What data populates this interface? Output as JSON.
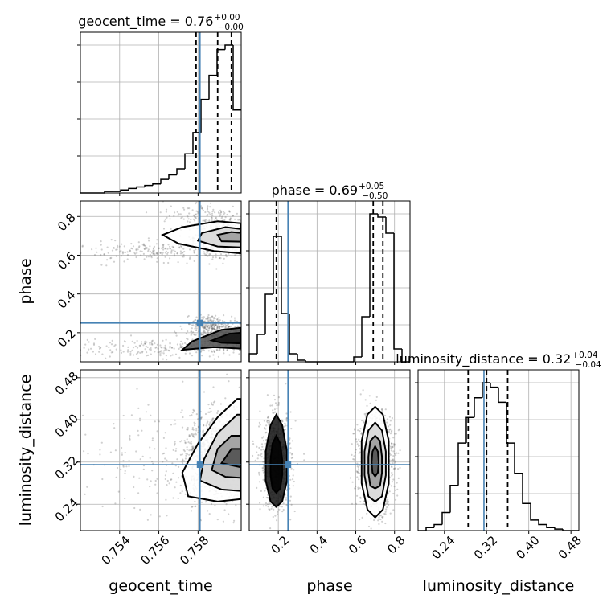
{
  "chart_data": {
    "type": "corner",
    "colors": {
      "truth": "#4682b4",
      "hist": "#000000",
      "points": "#555555",
      "grid": "#b0b0b0"
    },
    "parameters": [
      {
        "name": "geocent_time",
        "axis_label": "geocent_time",
        "range": [
          0.752,
          0.7602
        ],
        "ticks": [
          0.754,
          0.756,
          0.758
        ],
        "tick_labels": [
          "0.754",
          "0.756",
          "0.758"
        ],
        "truth": 0.7581,
        "quantiles": [
          0.7579,
          0.759,
          0.7597
        ],
        "title": {
          "main": "geocent_time = 0.76",
          "plus": "+0.00",
          "minus": "−0.00"
        },
        "hist": {
          "edges": [
            0.752,
            0.75241,
            0.75282,
            0.75323,
            0.75364,
            0.75405,
            0.75446,
            0.75487,
            0.75528,
            0.75569,
            0.7561,
            0.75651,
            0.75692,
            0.75733,
            0.75774,
            0.75815,
            0.75856,
            0.75897,
            0.75938,
            0.75979,
            0.7602
          ],
          "counts": [
            0,
            0,
            0,
            1,
            1,
            2,
            3,
            4,
            5,
            6,
            9,
            12,
            16,
            26,
            40,
            62,
            78,
            95,
            98,
            55
          ]
        }
      },
      {
        "name": "phase",
        "axis_label": "phase",
        "range": [
          0.05,
          0.88
        ],
        "ticks": [
          0.2,
          0.4,
          0.6,
          0.8
        ],
        "tick_labels": [
          "0.2",
          "0.4",
          "0.6",
          "0.8"
        ],
        "truth": 0.25,
        "quantiles": [
          0.19,
          0.69,
          0.74
        ],
        "title": {
          "main": "phase = 0.69",
          "plus": "+0.05",
          "minus": "−0.50"
        },
        "hist": {
          "edges": [
            0.05,
            0.0915,
            0.133,
            0.1745,
            0.216,
            0.2575,
            0.299,
            0.3405,
            0.382,
            0.4235,
            0.465,
            0.5065,
            0.548,
            0.5895,
            0.631,
            0.6725,
            0.714,
            0.7555,
            0.797,
            0.8385,
            0.88
          ],
          "counts": [
            5,
            17,
            42,
            78,
            30,
            5,
            1,
            0,
            0,
            0,
            0,
            0,
            0,
            3,
            28,
            92,
            90,
            80,
            8,
            0
          ]
        }
      },
      {
        "name": "luminosity_distance",
        "axis_label": "luminosity_distance",
        "range": [
          0.19,
          0.495
        ],
        "ticks": [
          0.24,
          0.32,
          0.4,
          0.48
        ],
        "tick_labels": [
          "0.24",
          "0.32",
          "0.40",
          "0.48"
        ],
        "truth": 0.315,
        "quantiles": [
          0.285,
          0.32,
          0.36
        ],
        "title": {
          "main": "luminosity_distance = 0.32",
          "plus": "+0.04",
          "minus": "−0.04"
        },
        "hist": {
          "edges": [
            0.19,
            0.20525,
            0.2205,
            0.23575,
            0.251,
            0.26625,
            0.2815,
            0.29675,
            0.312,
            0.32725,
            0.3425,
            0.35775,
            0.373,
            0.38825,
            0.4035,
            0.41875,
            0.434,
            0.44925,
            0.4645,
            0.47975,
            0.495
          ],
          "counts": [
            0,
            2,
            4,
            12,
            30,
            58,
            75,
            88,
            98,
            95,
            85,
            58,
            38,
            18,
            7,
            4,
            2,
            1,
            0,
            0
          ]
        }
      }
    ],
    "blobs_2d": {
      "phase_vs_geocent_time": [
        {
          "x": 0.7594,
          "y": 0.69,
          "sx": 0.0008,
          "sy": 0.04,
          "n": 600
        },
        {
          "x": 0.7592,
          "y": 0.19,
          "sx": 0.0008,
          "sy": 0.04,
          "n": 450
        },
        {
          "x": 0.7565,
          "y": 0.62,
          "sx": 0.0025,
          "sy": 0.025,
          "n": 250
        },
        {
          "x": 0.756,
          "y": 0.12,
          "sx": 0.003,
          "sy": 0.025,
          "n": 250
        },
        {
          "x": 0.7585,
          "y": 0.25,
          "sx": 0.0004,
          "sy": 0.02,
          "n": 120
        },
        {
          "x": 0.7585,
          "y": 0.8,
          "sx": 0.0012,
          "sy": 0.04,
          "n": 150
        }
      ],
      "luminosity_distance_vs_geocent_time": [
        {
          "x": 0.7592,
          "y": 0.33,
          "sx": 0.001,
          "sy": 0.04,
          "n": 1300
        },
        {
          "x": 0.757,
          "y": 0.32,
          "sx": 0.003,
          "sy": 0.06,
          "n": 250
        }
      ],
      "luminosity_distance_vs_phase": [
        {
          "x": 0.7,
          "y": 0.32,
          "sx": 0.05,
          "sy": 0.045,
          "n": 1000
        },
        {
          "x": 0.19,
          "y": 0.32,
          "sx": 0.04,
          "sy": 0.045,
          "n": 700
        }
      ]
    },
    "contours_2d": {
      "phase_vs_geocent_time": [
        [
          [
            0.7572,
            0.745
          ],
          [
            0.759,
            0.775
          ],
          [
            0.7602,
            0.765
          ],
          [
            0.7602,
            0.61
          ],
          [
            0.7588,
            0.622
          ],
          [
            0.757,
            0.66
          ],
          [
            0.7562,
            0.705
          ]
        ],
        [
          [
            0.7582,
            0.715
          ],
          [
            0.7594,
            0.745
          ],
          [
            0.7602,
            0.735
          ],
          [
            0.7602,
            0.64
          ],
          [
            0.759,
            0.645
          ],
          [
            0.758,
            0.675
          ]
        ],
        [
          [
            0.759,
            0.705
          ],
          [
            0.7597,
            0.72
          ],
          [
            0.7602,
            0.715
          ],
          [
            0.7602,
            0.67
          ],
          [
            0.7592,
            0.672
          ]
        ],
        [
          [
            0.7577,
            0.155
          ],
          [
            0.7592,
            0.215
          ],
          [
            0.7602,
            0.225
          ],
          [
            0.7602,
            0.118
          ],
          [
            0.7588,
            0.125
          ],
          [
            0.7572,
            0.112
          ]
        ],
        [
          [
            0.7587,
            0.16
          ],
          [
            0.7596,
            0.195
          ],
          [
            0.7602,
            0.2
          ],
          [
            0.7602,
            0.145
          ],
          [
            0.7592,
            0.148
          ]
        ]
      ],
      "luminosity_distance_vs_geocent_time": [
        [
          [
            0.7575,
            0.255
          ],
          [
            0.7572,
            0.3
          ],
          [
            0.758,
            0.355
          ],
          [
            0.759,
            0.405
          ],
          [
            0.76,
            0.44
          ],
          [
            0.7602,
            0.44
          ],
          [
            0.7602,
            0.25
          ],
          [
            0.759,
            0.245
          ]
        ],
        [
          [
            0.7581,
            0.285
          ],
          [
            0.7583,
            0.325
          ],
          [
            0.759,
            0.375
          ],
          [
            0.76,
            0.41
          ],
          [
            0.7602,
            0.41
          ],
          [
            0.7602,
            0.265
          ],
          [
            0.7592,
            0.268
          ]
        ],
        [
          [
            0.7587,
            0.305
          ],
          [
            0.759,
            0.345
          ],
          [
            0.7597,
            0.37
          ],
          [
            0.7602,
            0.37
          ],
          [
            0.7602,
            0.29
          ],
          [
            0.7594,
            0.292
          ]
        ],
        [
          [
            0.7592,
            0.318
          ],
          [
            0.7597,
            0.345
          ],
          [
            0.7602,
            0.345
          ],
          [
            0.7602,
            0.31
          ]
        ]
      ],
      "luminosity_distance_vs_phase": [
        [
          [
            0.7,
            0.425
          ],
          [
            0.66,
            0.41
          ],
          [
            0.63,
            0.36
          ],
          [
            0.63,
            0.28
          ],
          [
            0.66,
            0.23
          ],
          [
            0.7,
            0.215
          ],
          [
            0.74,
            0.23
          ],
          [
            0.77,
            0.28
          ],
          [
            0.77,
            0.36
          ],
          [
            0.74,
            0.41
          ]
        ],
        [
          [
            0.7,
            0.395
          ],
          [
            0.665,
            0.38
          ],
          [
            0.645,
            0.34
          ],
          [
            0.645,
            0.295
          ],
          [
            0.665,
            0.255
          ],
          [
            0.7,
            0.245
          ],
          [
            0.735,
            0.255
          ],
          [
            0.755,
            0.295
          ],
          [
            0.755,
            0.34
          ],
          [
            0.735,
            0.38
          ]
        ],
        [
          [
            0.7,
            0.37
          ],
          [
            0.675,
            0.36
          ],
          [
            0.665,
            0.33
          ],
          [
            0.665,
            0.3
          ],
          [
            0.675,
            0.275
          ],
          [
            0.7,
            0.27
          ],
          [
            0.725,
            0.275
          ],
          [
            0.735,
            0.3
          ],
          [
            0.735,
            0.33
          ],
          [
            0.725,
            0.36
          ]
        ],
        [
          [
            0.7,
            0.35
          ],
          [
            0.686,
            0.34
          ],
          [
            0.682,
            0.32
          ],
          [
            0.686,
            0.3
          ],
          [
            0.7,
            0.293
          ],
          [
            0.714,
            0.3
          ],
          [
            0.718,
            0.32
          ],
          [
            0.714,
            0.34
          ]
        ],
        [
          [
            0.19,
            0.41
          ],
          [
            0.16,
            0.39
          ],
          [
            0.135,
            0.34
          ],
          [
            0.135,
            0.285
          ],
          [
            0.16,
            0.245
          ],
          [
            0.19,
            0.235
          ],
          [
            0.22,
            0.245
          ],
          [
            0.245,
            0.285
          ],
          [
            0.245,
            0.34
          ],
          [
            0.22,
            0.39
          ]
        ],
        [
          [
            0.19,
            0.37
          ],
          [
            0.17,
            0.355
          ],
          [
            0.16,
            0.325
          ],
          [
            0.16,
            0.295
          ],
          [
            0.17,
            0.27
          ],
          [
            0.19,
            0.262
          ],
          [
            0.21,
            0.27
          ],
          [
            0.22,
            0.295
          ],
          [
            0.22,
            0.325
          ],
          [
            0.21,
            0.355
          ]
        ]
      ]
    }
  }
}
